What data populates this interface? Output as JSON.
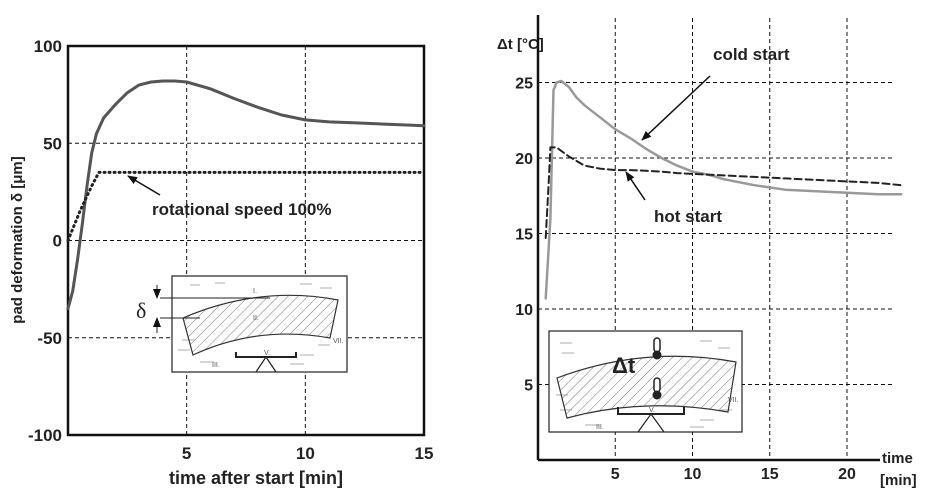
{
  "chart_data": [
    {
      "type": "line",
      "title": "",
      "xlabel": "time after start [min]",
      "ylabel": "pad deformation δ [μm]",
      "xlim": [
        0,
        15
      ],
      "ylim": [
        -100,
        100
      ],
      "x_ticks": [
        5,
        10,
        15
      ],
      "y_ticks": [
        100,
        50,
        0,
        -50,
        -100
      ],
      "x_grid": [
        5,
        10
      ],
      "y_grid": [
        50,
        0,
        -50
      ],
      "grid": true,
      "series": [
        {
          "style": "solid",
          "color": "#555555",
          "x": [
            0,
            0.2,
            0.4,
            0.6,
            0.8,
            1.0,
            1.2,
            1.5,
            2.0,
            2.5,
            3.0,
            3.5,
            4.0,
            4.5,
            5.0,
            6.0,
            7.0,
            8.0,
            9.0,
            10.0,
            11.0,
            12.0,
            13.0,
            14.0,
            15.0
          ],
          "y": [
            -35,
            -26,
            -10,
            8,
            28,
            45,
            55,
            63,
            70,
            76,
            80,
            81.5,
            82,
            82,
            81.5,
            78,
            73,
            68.5,
            64.5,
            62,
            61,
            60.5,
            60,
            59.5,
            59
          ]
        },
        {
          "style": "dotted",
          "color": "#222222",
          "x": [
            0,
            0.5,
            1.0,
            1.3,
            15.0
          ],
          "y": [
            0,
            15,
            28,
            35,
            35
          ]
        }
      ],
      "annotations": [
        {
          "text": "rotational speed 100%",
          "target": [
            3.3,
            34
          ]
        }
      ],
      "inset": {
        "type": "bearing-pad-sketch",
        "symbol": "δ",
        "labels": [
          "I.",
          "II.",
          "III.",
          "V.",
          "VII."
        ]
      }
    },
    {
      "type": "line",
      "title": "",
      "xlabel": "time [min]",
      "ylabel": "Δt [°C]",
      "xlim": [
        0,
        25
      ],
      "ylim": [
        0,
        28
      ],
      "x_ticks": [
        5,
        10,
        15,
        20
      ],
      "y_ticks": [
        5,
        10,
        15,
        20,
        25
      ],
      "x_grid": [
        5,
        10,
        15,
        20
      ],
      "y_grid": [
        5,
        10,
        15,
        20,
        25
      ],
      "grid": true,
      "series": [
        {
          "style": "solid",
          "color": "#999999",
          "x": [
            0.5,
            0.8,
            1.0,
            1.2,
            1.5,
            2.0,
            2.5,
            3.0,
            4.0,
            5.0,
            6.0,
            7.0,
            8.0,
            9.0,
            10.0,
            11.0,
            12.0,
            14.0,
            16.0,
            18.0,
            20.0,
            22.0,
            23.5
          ],
          "y": [
            10.7,
            16,
            24.5,
            25.0,
            25.1,
            24.7,
            24.0,
            23.5,
            22.7,
            21.9,
            21.3,
            20.6,
            20.0,
            19.5,
            19.1,
            18.9,
            18.6,
            18.2,
            17.9,
            17.8,
            17.7,
            17.6,
            17.6
          ]
        },
        {
          "style": "dashed",
          "color": "#222222",
          "x": [
            0.5,
            0.7,
            0.8,
            1.2,
            1.6,
            2.0,
            2.5,
            3.0,
            4.0,
            5.0,
            6.0,
            7.0,
            8.0,
            9.0,
            10.0,
            12.0,
            14.0,
            16.0,
            18.0,
            20.0,
            22.0,
            23.5
          ],
          "y": [
            14.7,
            18.5,
            20.7,
            20.7,
            20.4,
            20.1,
            19.8,
            19.5,
            19.3,
            19.2,
            19.2,
            19.15,
            19.1,
            19.0,
            18.95,
            18.85,
            18.75,
            18.65,
            18.55,
            18.45,
            18.35,
            18.2
          ]
        }
      ],
      "annotations": [
        {
          "text": "cold start",
          "target": [
            6.5,
            21.3
          ]
        },
        {
          "text": "hot start",
          "target": [
            8.0,
            19.1
          ]
        }
      ],
      "inset": {
        "type": "bearing-pad-sketch",
        "symbol": "Δt",
        "labels": [
          "III.",
          "V.",
          "VII."
        ]
      }
    }
  ]
}
